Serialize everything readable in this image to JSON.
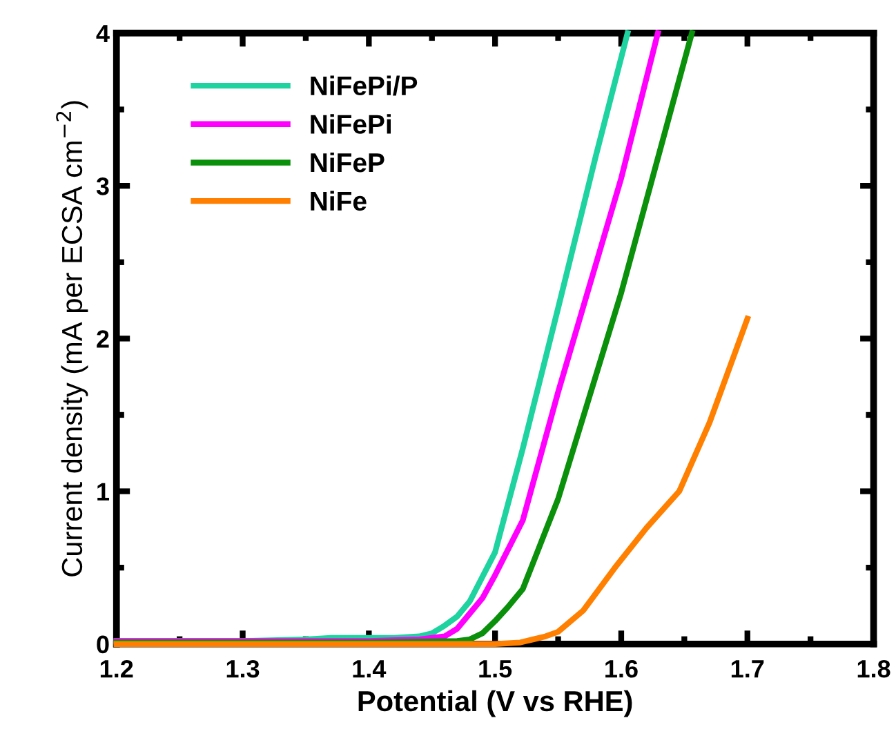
{
  "chart_data": {
    "type": "line",
    "xlabel": "Potential (V vs RHE)",
    "ylabel": "Current density (mA per ECSA cm$^{−2}$)",
    "xlim": [
      1.2,
      1.8
    ],
    "ylim": [
      0,
      4
    ],
    "xticks": [
      1.2,
      1.3,
      1.4,
      1.5,
      1.6,
      1.7,
      1.8
    ],
    "yticks": [
      0,
      1,
      2,
      3,
      4
    ],
    "legend": "top left",
    "grid": false,
    "marker": "none",
    "line_style": "solid",
    "series": [
      {
        "name": "NiFePi/P",
        "color": "#1fd3a0",
        "x": [
          1.2,
          1.3,
          1.35,
          1.37,
          1.4,
          1.42,
          1.44,
          1.45,
          1.46,
          1.47,
          1.48,
          1.5,
          1.522,
          1.55,
          1.58,
          1.605
        ],
        "values": [
          0.02,
          0.02,
          0.03,
          0.04,
          0.04,
          0.04,
          0.05,
          0.07,
          0.12,
          0.18,
          0.28,
          0.6,
          1.28,
          2.2,
          3.2,
          4.0
        ]
      },
      {
        "name": "NiFePi",
        "color": "#ff00ff",
        "x": [
          1.2,
          1.3,
          1.4,
          1.44,
          1.46,
          1.47,
          1.48,
          1.49,
          1.5,
          1.522,
          1.55,
          1.6,
          1.629
        ],
        "values": [
          0.02,
          0.02,
          0.02,
          0.03,
          0.05,
          0.1,
          0.2,
          0.3,
          0.45,
          0.81,
          1.65,
          3.05,
          4.0
        ]
      },
      {
        "name": "NiFeP",
        "color": "#0a900a",
        "x": [
          1.2,
          1.3,
          1.4,
          1.47,
          1.48,
          1.49,
          1.5,
          1.51,
          1.522,
          1.55,
          1.6,
          1.656
        ],
        "values": [
          0.01,
          0.01,
          0.01,
          0.02,
          0.03,
          0.07,
          0.15,
          0.24,
          0.36,
          0.95,
          2.3,
          4.0
        ]
      },
      {
        "name": "NiFe",
        "color": "#ff8000",
        "x": [
          1.2,
          1.3,
          1.4,
          1.5,
          1.52,
          1.53,
          1.54,
          1.55,
          1.57,
          1.595,
          1.62,
          1.646,
          1.67,
          1.7
        ],
        "values": [
          0.0,
          0.0,
          0.0,
          0.0,
          0.01,
          0.03,
          0.05,
          0.08,
          0.22,
          0.5,
          0.76,
          1.0,
          1.45,
          2.13
        ]
      }
    ]
  }
}
